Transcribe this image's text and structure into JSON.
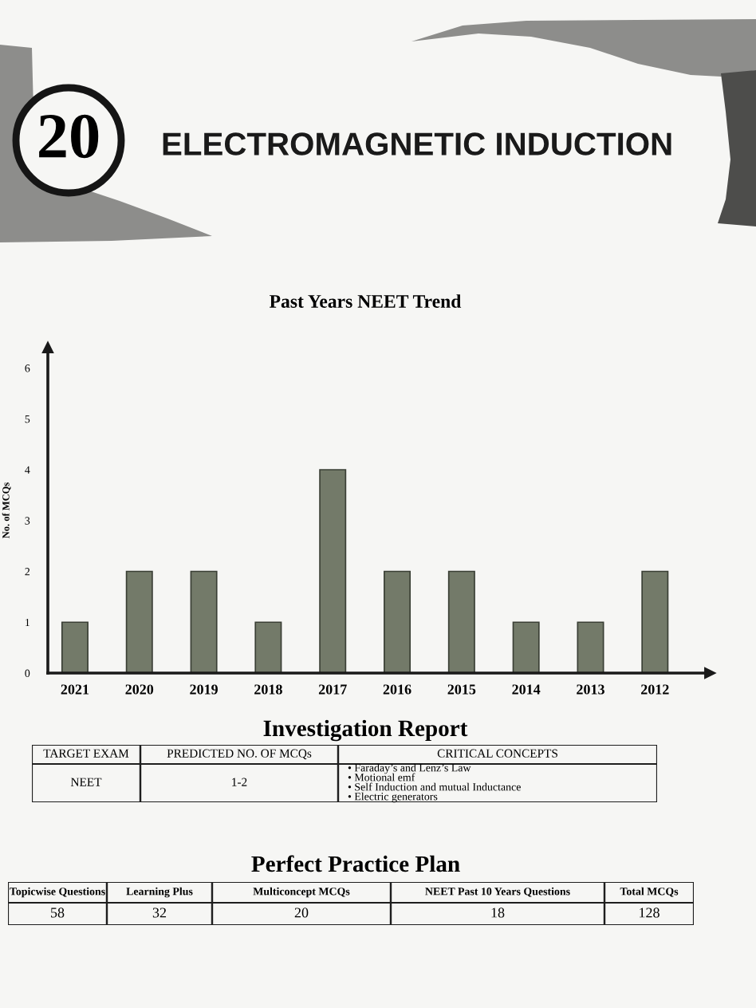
{
  "chart_data": [
    {
      "type": "other",
      "title": "ELECTROMAGNETIC INDUCTION",
      "annotations": [
        "20"
      ]
    },
    {
      "type": "bar",
      "title": "Past Years NEET Trend",
      "ylabel": "No. of MCQs",
      "categories": [
        "2021",
        "2020",
        "2019",
        "2018",
        "2017",
        "2016",
        "2015",
        "2014",
        "2013",
        "2012"
      ],
      "values": [
        1,
        2,
        2,
        1,
        4,
        2,
        2,
        1,
        1,
        2
      ],
      "color": "#737a69",
      "ylim": [
        0,
        6.4
      ],
      "yticks": [
        0,
        1,
        2,
        3,
        4,
        5,
        6
      ]
    },
    {
      "type": "other",
      "title": "Investigation Report",
      "categories": [
        "TARGET EXAM",
        "PREDICTED NO. OF MCQs",
        "CRITICAL CONCEPTS"
      ],
      "annotations": [
        "NEET",
        "1-2",
        "• Faraday’s and Lenz’s Law",
        "• Motional emf",
        "• Self Induction and mutual Inductance",
        "• Electric generators"
      ]
    },
    {
      "type": "other",
      "title": "Perfect Practice Plan",
      "categories": [
        "Topicwise Questions",
        "Learning Plus",
        "Multiconcept MCQs",
        "NEET Past 10 Years Questions",
        "Total MCQs"
      ],
      "values": [
        58,
        32,
        20,
        18,
        128
      ],
      "data_labels": true
    }
  ]
}
